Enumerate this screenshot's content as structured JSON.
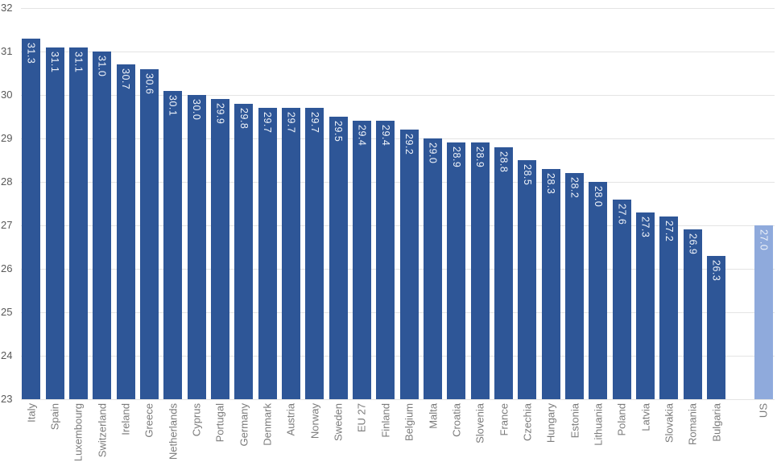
{
  "chart_data": {
    "type": "bar",
    "title": "",
    "xlabel": "",
    "ylabel": "",
    "ylim": [
      23,
      32
    ],
    "yticks": [
      23,
      24,
      25,
      26,
      27,
      28,
      29,
      30,
      31,
      32
    ],
    "grid": true,
    "legend": false,
    "bar_color": "#2e5697",
    "highlight_color": "#8faadc",
    "value_label_color": "#eef2f9",
    "axis_label_color": "#7b7b7b",
    "ytick_label_color": "#595959",
    "gap_before_last_bar": true,
    "bars": [
      {
        "label": "Italy",
        "value": 31.3,
        "highlight": false
      },
      {
        "label": "Spain",
        "value": 31.1,
        "highlight": false
      },
      {
        "label": "Luxembourg",
        "value": 31.1,
        "highlight": false
      },
      {
        "label": "Switzerland",
        "value": 31.0,
        "highlight": false
      },
      {
        "label": "Ireland",
        "value": 30.7,
        "highlight": false
      },
      {
        "label": "Greece",
        "value": 30.6,
        "highlight": false
      },
      {
        "label": "Netherlands",
        "value": 30.1,
        "highlight": false
      },
      {
        "label": "Cyprus",
        "value": 30.0,
        "highlight": false
      },
      {
        "label": "Portugal",
        "value": 29.9,
        "highlight": false
      },
      {
        "label": "Germany",
        "value": 29.8,
        "highlight": false
      },
      {
        "label": "Denmark",
        "value": 29.7,
        "highlight": false
      },
      {
        "label": "Austria",
        "value": 29.7,
        "highlight": false
      },
      {
        "label": "Norway",
        "value": 29.7,
        "highlight": false
      },
      {
        "label": "Sweden",
        "value": 29.5,
        "highlight": false
      },
      {
        "label": "EU 27",
        "value": 29.4,
        "highlight": false
      },
      {
        "label": "Finland",
        "value": 29.4,
        "highlight": false
      },
      {
        "label": "Belgium",
        "value": 29.2,
        "highlight": false
      },
      {
        "label": "Malta",
        "value": 29.0,
        "highlight": false
      },
      {
        "label": "Croatia",
        "value": 28.9,
        "highlight": false
      },
      {
        "label": "Slovenia",
        "value": 28.9,
        "highlight": false
      },
      {
        "label": "France",
        "value": 28.8,
        "highlight": false
      },
      {
        "label": "Czechia",
        "value": 28.5,
        "highlight": false
      },
      {
        "label": "Hungary",
        "value": 28.3,
        "highlight": false
      },
      {
        "label": "Estonia",
        "value": 28.2,
        "highlight": false
      },
      {
        "label": "Lithuania",
        "value": 28.0,
        "highlight": false
      },
      {
        "label": "Poland",
        "value": 27.6,
        "highlight": false
      },
      {
        "label": "Latvia",
        "value": 27.3,
        "highlight": false
      },
      {
        "label": "Slovakia",
        "value": 27.2,
        "highlight": false
      },
      {
        "label": "Romania",
        "value": 26.9,
        "highlight": false
      },
      {
        "label": "Bulgaria",
        "value": 26.3,
        "highlight": false
      },
      {
        "label": "US",
        "value": 27.0,
        "highlight": true
      }
    ]
  }
}
